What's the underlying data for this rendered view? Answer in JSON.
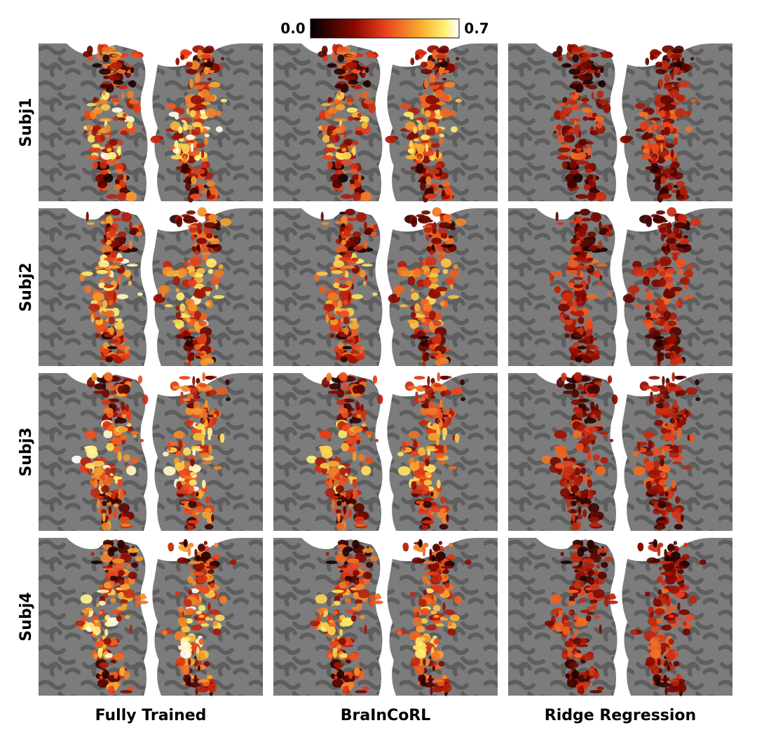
{
  "colorbar": {
    "min_label": "0.0",
    "max_label": "0.7"
  },
  "rows": [
    "Subj1",
    "Subj2",
    "Subj3",
    "Subj4"
  ],
  "columns": [
    "Fully Trained",
    "BraInCoRL",
    "Ridge Regression"
  ]
}
